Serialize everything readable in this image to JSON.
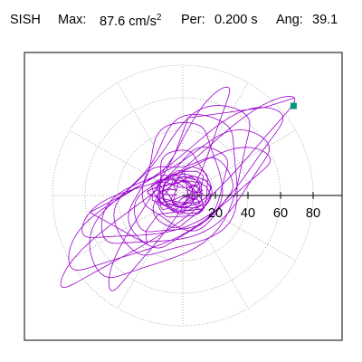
{
  "header": {
    "station": "SISH",
    "max_label": "Max:",
    "max_value": "87.6 cm/s",
    "max_exp": "2",
    "per_label": "Per:",
    "per_value": "0.200 s",
    "ang_label": "Ang:",
    "ang_value": "39.1"
  },
  "chart_data": {
    "type": "scatter",
    "title": "SISH Max: 87.6 cm/s2 Per: 0.200 s Ang: 39.1",
    "polar": true,
    "rings": [
      20,
      40,
      60,
      80
    ],
    "ring_ticks": [
      "20",
      "40",
      "60",
      "80"
    ],
    "angular_grid_step_deg": 30,
    "xlim": [
      -95,
      95
    ],
    "ylim": [
      -95,
      95
    ],
    "colors": {
      "trace": "#9900cc",
      "marker": "#009977",
      "grid": "#999999"
    },
    "marker": {
      "x": 68,
      "y": 55
    },
    "trace_lobes": [
      {
        "rx": 92,
        "ry": 12,
        "ang": 39,
        "cx": -3,
        "cy": 2,
        "phase": 0.0
      },
      {
        "rx": 80,
        "ry": 20,
        "ang": 36,
        "cx": -4,
        "cy": 3,
        "phase": 0.4
      },
      {
        "rx": 66,
        "ry": 28,
        "ang": 48,
        "cx": -6,
        "cy": 1,
        "phase": 0.9
      },
      {
        "rx": 72,
        "ry": 10,
        "ang": 60,
        "cx": -8,
        "cy": 4,
        "phase": 1.3
      },
      {
        "rx": 58,
        "ry": 22,
        "ang": 30,
        "cx": 2,
        "cy": 3,
        "phase": 1.7
      },
      {
        "rx": 48,
        "ry": 30,
        "ang": 55,
        "cx": -2,
        "cy": 5,
        "phase": 2.1
      },
      {
        "rx": 62,
        "ry": 16,
        "ang": 22,
        "cx": -4,
        "cy": 0,
        "phase": 2.6
      },
      {
        "rx": 40,
        "ry": 24,
        "ang": 70,
        "cx": -5,
        "cy": 6,
        "phase": 3.0
      },
      {
        "rx": 34,
        "ry": 18,
        "ang": 40,
        "cx": 0,
        "cy": 2,
        "phase": 3.4
      },
      {
        "rx": 28,
        "ry": 20,
        "ang": 10,
        "cx": 3,
        "cy": 3,
        "phase": 3.9
      },
      {
        "rx": 24,
        "ry": 16,
        "ang": 80,
        "cx": -2,
        "cy": 4,
        "phase": 4.3
      },
      {
        "rx": 18,
        "ry": 12,
        "ang": 45,
        "cx": 1,
        "cy": 1,
        "phase": 4.7
      },
      {
        "rx": 12,
        "ry": 8,
        "ang": 20,
        "cx": -1,
        "cy": 2,
        "phase": 5.1
      },
      {
        "rx": 8,
        "ry": 6,
        "ang": 65,
        "cx": 0,
        "cy": 1,
        "phase": 5.5
      }
    ]
  }
}
